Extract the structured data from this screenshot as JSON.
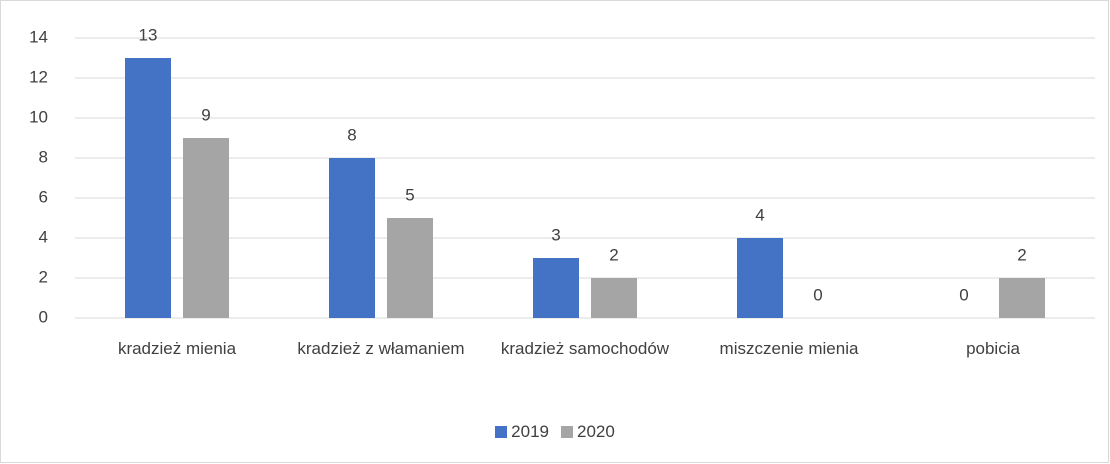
{
  "chart_data": {
    "type": "bar",
    "categories": [
      "kradzież mienia",
      "kradzież z włamaniem",
      "kradzież samochodów",
      "miszczenie mienia",
      "pobicia"
    ],
    "series": [
      {
        "name": "2019",
        "color": "#4472c4",
        "values": [
          13,
          8,
          3,
          4,
          0
        ]
      },
      {
        "name": "2020",
        "color": "#a5a5a5",
        "values": [
          9,
          5,
          2,
          0,
          2
        ]
      }
    ],
    "ylim": [
      0,
      14
    ],
    "yticks": [
      0,
      2,
      4,
      6,
      8,
      10,
      12,
      14
    ],
    "grid": true,
    "legend": "bottom"
  }
}
